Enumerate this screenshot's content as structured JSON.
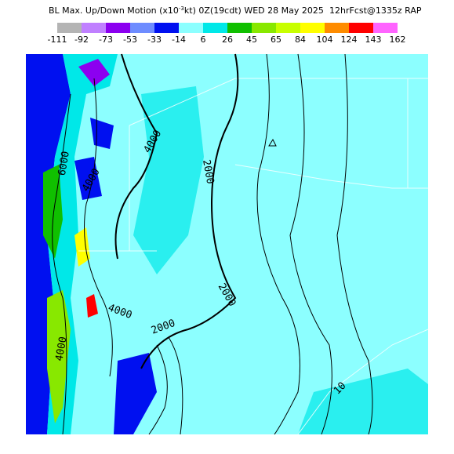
{
  "header": {
    "title_start": "BL Max. Up/Down Motion (x10",
    "title_exponent": "-3",
    "title_end": "kt) 0Z(19cdt) WED 28 May 2025",
    "forecast": "12hrFcst@1335z RAP"
  },
  "colorbar": {
    "labels": [
      "-111",
      "-92",
      "-73",
      "-53",
      "-33",
      "-14",
      "6",
      "26",
      "45",
      "65",
      "84",
      "104",
      "124",
      "143",
      "162"
    ],
    "colors": [
      "#b4b4b4",
      "#c080ff",
      "#8c00f0",
      "#6e8cff",
      "#0010f0",
      "#8cffff",
      "#00e8e8",
      "#10c000",
      "#88e800",
      "#c8ff00",
      "#ffff00",
      "#ff8c00",
      "#ff0000",
      "#ff64ff"
    ]
  },
  "contour_labels": [
    "4000",
    "2000",
    "4000",
    "6000",
    "2000",
    "2000",
    "4000",
    "4000",
    "10"
  ]
}
